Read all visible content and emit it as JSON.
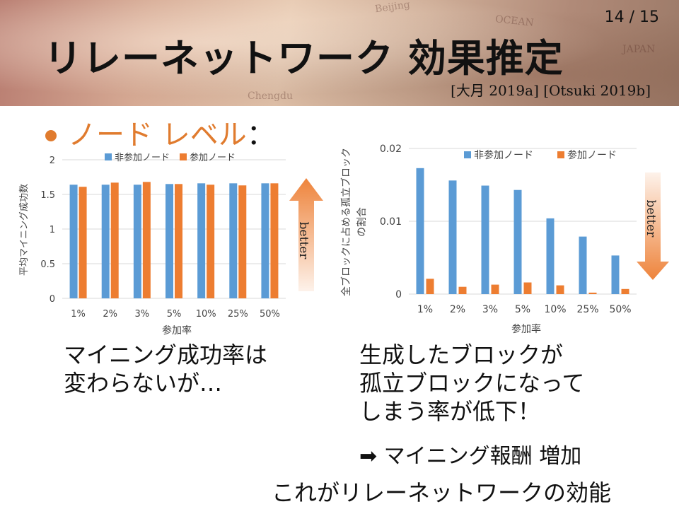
{
  "header": {
    "page_number": "14 / 15",
    "title": "リレーネットワーク 効果推定",
    "citation": "[大月 2019a] [Otsuki 2019b]",
    "map_labels": [
      "Beijing",
      "JAPAN",
      "OCEAN",
      "Chengdu"
    ]
  },
  "bullet": {
    "label": "ノード レベル",
    "colon": "："
  },
  "colors": {
    "non_participating": "#5b9bd5",
    "participating": "#ed7d31",
    "accent": "#e07b2e"
  },
  "chart_data": [
    {
      "type": "bar",
      "categories": [
        "1%",
        "2%",
        "3%",
        "5%",
        "10%",
        "25%",
        "50%"
      ],
      "series": [
        {
          "name": "非参加ノード",
          "values": [
            1.64,
            1.64,
            1.64,
            1.65,
            1.66,
            1.66,
            1.66
          ]
        },
        {
          "name": "参加ノード",
          "values": [
            1.61,
            1.67,
            1.68,
            1.65,
            1.64,
            1.63,
            1.66
          ]
        }
      ],
      "title": "",
      "xlabel": "参加率",
      "ylabel": "平均マイニング成功数",
      "ylim": [
        0,
        2
      ],
      "yticks": [
        "0",
        "0.5",
        "1",
        "1.5",
        "2"
      ],
      "grid": true,
      "legend": "top",
      "annotation": "better"
    },
    {
      "type": "bar",
      "categories": [
        "1%",
        "2%",
        "3%",
        "5%",
        "10%",
        "25%",
        "50%"
      ],
      "series": [
        {
          "name": "非参加ノード",
          "values": [
            0.0173,
            0.0156,
            0.0149,
            0.0143,
            0.0104,
            0.0079,
            0.0053
          ]
        },
        {
          "name": "参加ノード",
          "values": [
            0.0021,
            0.001,
            0.0013,
            0.0016,
            0.0012,
            0.0002,
            0.0007
          ]
        }
      ],
      "title": "",
      "xlabel": "参加率",
      "ylabel": "全ブロックに占める孤立ブロックの割合",
      "ylabel_lines": [
        "全ブロックに占める孤立ブロック",
        "の割合"
      ],
      "ylim": [
        0,
        0.02
      ],
      "yticks": [
        "0",
        "0.01",
        "0.02"
      ],
      "grid": true,
      "legend": "top",
      "annotation": "better"
    }
  ],
  "text": {
    "left_caption": [
      "マイニング成功率は",
      "変わらないが…"
    ],
    "right_caption": [
      "生成したブロックが",
      "孤立ブロックになって",
      "しまう率が低下！"
    ],
    "arrow_line": "➡ マイニング報酬 増加",
    "conclusion": "これがリレーネットワークの効能"
  }
}
